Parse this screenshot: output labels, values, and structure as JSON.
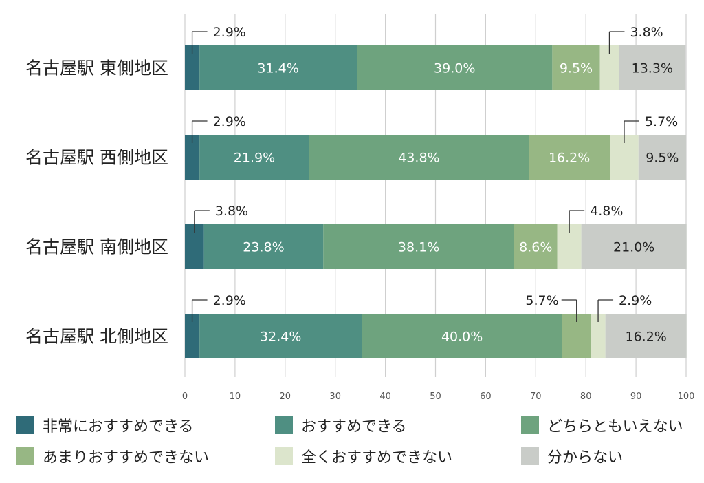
{
  "chart_data": {
    "type": "bar",
    "orientation": "horizontal",
    "stacked": true,
    "categories": [
      "名古屋駅 東側地区",
      "名古屋駅 西側地区",
      "名古屋駅 南側地区",
      "名古屋駅 北側地区"
    ],
    "series": [
      {
        "name": "非常におすすめできる",
        "color": "#2f6b78",
        "values": [
          2.9,
          2.9,
          3.8,
          2.9
        ]
      },
      {
        "name": "おすすめできる",
        "color": "#4f8f82",
        "values": [
          31.4,
          21.9,
          23.8,
          32.4
        ]
      },
      {
        "name": "どちらともいえない",
        "color": "#6ea37e",
        "values": [
          39.0,
          43.8,
          38.1,
          40.0
        ]
      },
      {
        "name": "あまりおすすめできない",
        "color": "#97b784",
        "values": [
          9.5,
          16.2,
          8.6,
          5.7
        ]
      },
      {
        "name": "全くおすすめできない",
        "color": "#dce5cc",
        "values": [
          3.8,
          5.7,
          4.8,
          2.9
        ]
      },
      {
        "name": "分からない",
        "color": "#c9ccc8",
        "values": [
          13.3,
          9.5,
          21.0,
          16.2
        ]
      }
    ],
    "labels": [
      [
        "2.9%",
        "31.4%",
        "39.0%",
        "9.5%",
        "3.8%",
        "13.3%"
      ],
      [
        "2.9%",
        "21.9%",
        "43.8%",
        "16.2%",
        "5.7%",
        "9.5%"
      ],
      [
        "3.8%",
        "23.8%",
        "38.1%",
        "8.6%",
        "4.8%",
        "21.0%"
      ],
      [
        "2.9%",
        "32.4%",
        "40.0%",
        "5.7%",
        "2.9%",
        "16.2%"
      ]
    ],
    "xlim": [
      0,
      100
    ],
    "xticks": [
      "0",
      "10",
      "20",
      "30",
      "40",
      "50",
      "60",
      "70",
      "80",
      "90",
      "100"
    ],
    "grid": true,
    "legend_position": "bottom"
  }
}
